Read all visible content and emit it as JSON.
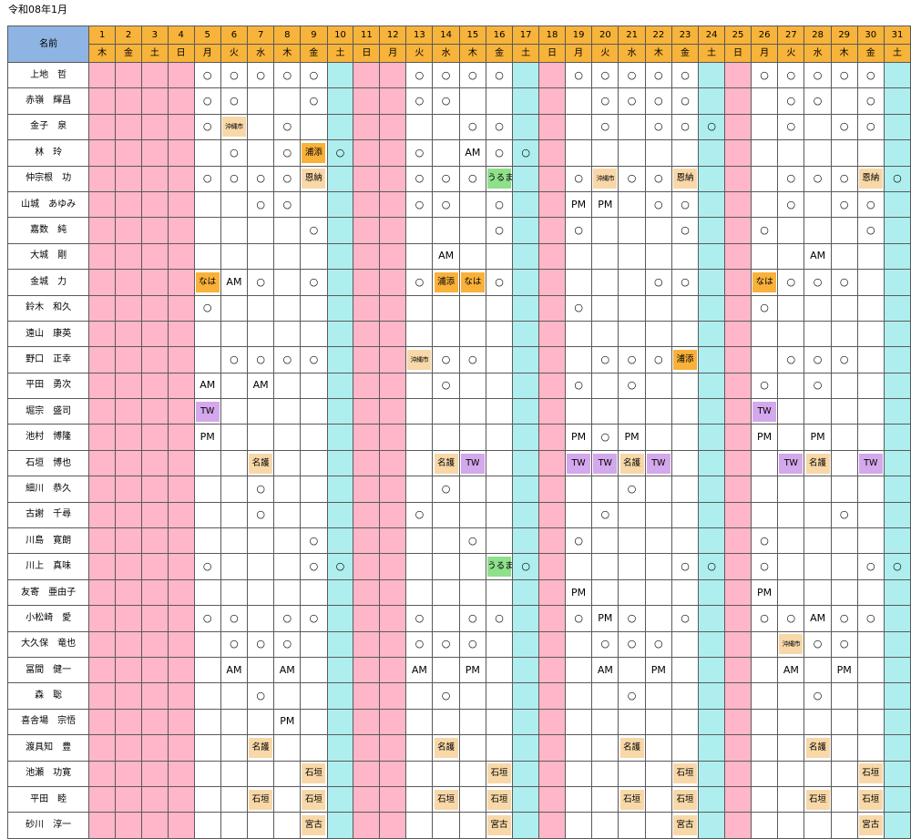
{
  "title": "令和08年1月",
  "name_header": "名前",
  "days": [
    "1",
    "2",
    "3",
    "4",
    "5",
    "6",
    "7",
    "8",
    "9",
    "10",
    "11",
    "12",
    "13",
    "14",
    "15",
    "16",
    "17",
    "18",
    "19",
    "20",
    "21",
    "22",
    "23",
    "24",
    "25",
    "26",
    "27",
    "28",
    "29",
    "30",
    "31"
  ],
  "weekdays": [
    "木",
    "金",
    "土",
    "日",
    "月",
    "火",
    "水",
    "木",
    "金",
    "土",
    "日",
    "月",
    "火",
    "水",
    "木",
    "金",
    "土",
    "日",
    "月",
    "火",
    "水",
    "木",
    "金",
    "土",
    "日",
    "月",
    "火",
    "水",
    "木",
    "金",
    "土"
  ],
  "colors": {
    "pink": "#ffb6c8",
    "cyan": "#aeeeef",
    "header": "#f7b33a",
    "name_header": "#8db4e2"
  },
  "pink_days": [
    "1",
    "2",
    "3",
    "4",
    "11",
    "12",
    "18",
    "25"
  ],
  "cyan_days": [
    "10",
    "17",
    "24",
    "31"
  ],
  "rows": [
    {
      "name": "上地　哲",
      "cells": {
        "5": "○",
        "6": "○",
        "7": "○",
        "8": "○",
        "9": "○",
        "13": "○",
        "14": "○",
        "15": "○",
        "16": "○",
        "19": "○",
        "20": "○",
        "21": "○",
        "22": "○",
        "23": "○",
        "26": "○",
        "27": "○",
        "28": "○",
        "29": "○",
        "30": "○"
      }
    },
    {
      "name": "赤嶺　輝昌",
      "cells": {
        "5": "○",
        "6": "○",
        "9": "○",
        "13": "○",
        "14": "○",
        "20": "○",
        "21": "○",
        "22": "○",
        "23": "○",
        "27": "○",
        "28": "○",
        "30": "○"
      }
    },
    {
      "name": "金子　泉",
      "cells": {
        "5": "○",
        "6": "沖縄市",
        "8": "○",
        "15": "○",
        "16": "○",
        "20": "○",
        "22": "○",
        "23": "○",
        "24": "○",
        "27": "○",
        "29": "○",
        "30": "○"
      }
    },
    {
      "name": "林　玲",
      "cells": {
        "6": "○",
        "8": "○",
        "9": "浦添",
        "10": "○",
        "13": "○",
        "15": "AM",
        "16": "○",
        "17": "○"
      }
    },
    {
      "name": "仲宗根　功",
      "cells": {
        "5": "○",
        "6": "○",
        "7": "○",
        "8": "○",
        "9": "恩納",
        "13": "○",
        "14": "○",
        "15": "○",
        "16": "うるま",
        "19": "○",
        "20": "沖縄市",
        "21": "○",
        "22": "○",
        "23": "恩納",
        "27": "○",
        "28": "○",
        "29": "○",
        "30": "恩納",
        "31": "○"
      }
    },
    {
      "name": "山城　あゆみ",
      "cells": {
        "7": "○",
        "8": "○",
        "13": "○",
        "14": "○",
        "16": "○",
        "19": "PM",
        "20": "PM",
        "22": "○",
        "23": "○",
        "27": "○",
        "29": "○",
        "30": "○"
      }
    },
    {
      "name": "嘉数　純",
      "cells": {
        "9": "○",
        "16": "○",
        "19": "○",
        "23": "○",
        "26": "○",
        "30": "○"
      }
    },
    {
      "name": "大城　剛",
      "cells": {
        "14": "AM",
        "28": "AM"
      }
    },
    {
      "name": "金城　力",
      "cells": {
        "5": "なは",
        "6": "AM",
        "7": "○",
        "9": "○",
        "13": "○",
        "14": "浦添",
        "15": "なは",
        "16": "○",
        "22": "○",
        "23": "○",
        "26": "なは",
        "27": "○",
        "28": "○",
        "29": "○"
      }
    },
    {
      "name": "鈴木　和久",
      "cells": {
        "5": "○",
        "19": "○",
        "26": "○"
      }
    },
    {
      "name": "遠山　康英",
      "cells": {}
    },
    {
      "name": "野口　正幸",
      "cells": {
        "6": "○",
        "7": "○",
        "8": "○",
        "9": "○",
        "13": "沖縄市",
        "14": "○",
        "15": "○",
        "20": "○",
        "21": "○",
        "22": "○",
        "23": "浦添",
        "27": "○",
        "28": "○",
        "29": "○"
      }
    },
    {
      "name": "平田　勇次",
      "cells": {
        "5": "AM",
        "7": "AM",
        "14": "○",
        "19": "○",
        "21": "○",
        "26": "○",
        "28": "○"
      }
    },
    {
      "name": "堀宗　盛司",
      "cells": {
        "5": "TW",
        "26": "TW"
      }
    },
    {
      "name": "池村　博隆",
      "cells": {
        "5": "PM",
        "19": "PM",
        "20": "○",
        "21": "PM",
        "26": "PM",
        "28": "PM"
      }
    },
    {
      "name": "石垣　博也",
      "cells": {
        "7": "名護",
        "14": "名護",
        "15": "TW",
        "19": "TW",
        "20": "TW",
        "21": "名護",
        "22": "TW",
        "27": "TW",
        "28": "名護",
        "30": "TW"
      }
    },
    {
      "name": "細川　恭久",
      "cells": {
        "7": "○",
        "14": "○",
        "21": "○"
      }
    },
    {
      "name": "古謝　千尋",
      "cells": {
        "7": "○",
        "13": "○",
        "20": "○",
        "29": "○"
      }
    },
    {
      "name": "川島　寛朗",
      "cells": {
        "9": "○",
        "15": "○",
        "19": "○",
        "26": "○"
      }
    },
    {
      "name": "川上　真味",
      "cells": {
        "5": "○",
        "9": "○",
        "10": "○",
        "16": "うるま",
        "17": "○",
        "23": "○",
        "24": "○",
        "26": "○",
        "30": "○",
        "31": "○"
      }
    },
    {
      "name": "友寄　亜由子",
      "cells": {
        "19": "PM",
        "26": "PM"
      }
    },
    {
      "name": "小松崎　愛",
      "cells": {
        "5": "○",
        "6": "○",
        "8": "○",
        "9": "○",
        "13": "○",
        "15": "○",
        "16": "○",
        "19": "○",
        "20": "PM",
        "21": "○",
        "23": "○",
        "26": "○",
        "27": "○",
        "28": "AM",
        "29": "○",
        "30": "○"
      }
    },
    {
      "name": "大久保　竜也",
      "cells": {
        "6": "○",
        "7": "○",
        "8": "○",
        "13": "○",
        "14": "○",
        "15": "○",
        "20": "○",
        "21": "○",
        "22": "○",
        "27": "沖縄市",
        "28": "○",
        "29": "○"
      }
    },
    {
      "name": "冨間　健一",
      "cells": {
        "6": "AM",
        "8": "AM",
        "13": "AM",
        "15": "PM",
        "20": "AM",
        "22": "PM",
        "27": "AM",
        "29": "PM"
      }
    },
    {
      "name": "森　聡",
      "cells": {
        "7": "○",
        "14": "○",
        "21": "○",
        "28": "○"
      }
    },
    {
      "name": "喜舎場　宗悟",
      "cells": {
        "8": "PM"
      }
    },
    {
      "name": "渡具知　豊",
      "cells": {
        "7": "名護",
        "14": "名護",
        "21": "名護",
        "28": "名護"
      }
    },
    {
      "name": "池瀬　功寛",
      "cells": {
        "9": "石垣",
        "16": "石垣",
        "23": "石垣",
        "30": "石垣"
      }
    },
    {
      "name": "平田　睦",
      "cells": {
        "7": "石垣",
        "9": "石垣",
        "14": "石垣",
        "16": "石垣",
        "21": "石垣",
        "23": "石垣",
        "28": "石垣",
        "30": "石垣"
      }
    },
    {
      "name": "砂川　淳一",
      "cells": {
        "9": "宮古",
        "16": "宮古",
        "23": "宮古",
        "30": "宮古"
      }
    }
  ]
}
